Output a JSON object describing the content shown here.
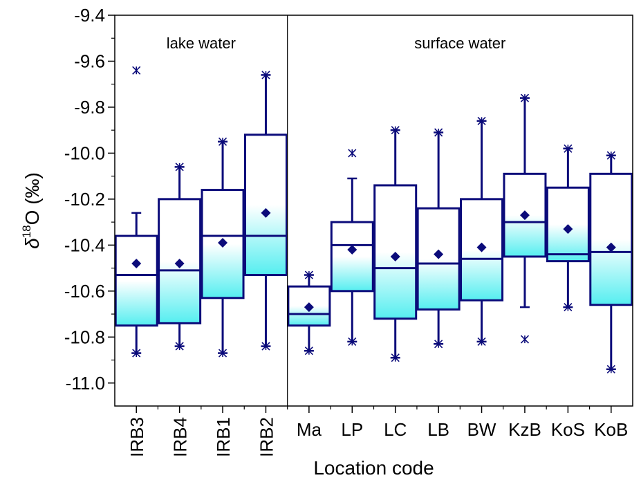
{
  "chart_data": {
    "type": "box",
    "xlabel": "Location code",
    "ylabel": {
      "symbol": "δ",
      "superscript": "18",
      "main": "O (‰)"
    },
    "ylim": [
      -11.1,
      -9.4
    ],
    "yticks": [
      -9.4,
      -9.6,
      -9.8,
      -10.0,
      -10.2,
      -10.4,
      -10.6,
      -10.8,
      -11.0
    ],
    "ytick_labels": [
      "-9.4",
      "-9.6",
      "-9.8",
      "-10.0",
      "-10.2",
      "-10.4",
      "-10.6",
      "-10.8",
      "-11.0"
    ],
    "groups": [
      {
        "label": "lake water",
        "categories": [
          "IRB3",
          "IRB4",
          "IRB1",
          "IRB2"
        ]
      },
      {
        "label": "surface water",
        "categories": [
          "Ma",
          "LP",
          "LC",
          "LB",
          "BW",
          "KzB",
          "KoS",
          "KoB"
        ]
      }
    ],
    "categories": [
      "IRB3",
      "IRB4",
      "IRB1",
      "IRB2",
      "Ma",
      "LP",
      "LC",
      "LB",
      "BW",
      "KzB",
      "KoS",
      "KoB"
    ],
    "boxes": [
      {
        "category": "IRB3",
        "whisker_low": -10.87,
        "q1": -10.75,
        "median": -10.53,
        "q3": -10.36,
        "whisker_high": -10.26,
        "mean": -10.48,
        "outliers": [
          -9.64,
          -10.87
        ]
      },
      {
        "category": "IRB4",
        "whisker_low": -10.84,
        "q1": -10.74,
        "median": -10.51,
        "q3": -10.2,
        "whisker_high": -10.06,
        "mean": -10.48,
        "outliers": [
          -10.06,
          -10.84
        ]
      },
      {
        "category": "IRB1",
        "whisker_low": -10.87,
        "q1": -10.63,
        "median": -10.36,
        "q3": -10.16,
        "whisker_high": -9.95,
        "mean": -10.39,
        "outliers": [
          -9.95,
          -10.87
        ]
      },
      {
        "category": "IRB2",
        "whisker_low": -10.84,
        "q1": -10.53,
        "median": -10.36,
        "q3": -9.92,
        "whisker_high": -9.66,
        "mean": -10.26,
        "outliers": [
          -9.66,
          -10.84
        ]
      },
      {
        "category": "Ma",
        "whisker_low": -10.86,
        "q1": -10.75,
        "median": -10.7,
        "q3": -10.58,
        "whisker_high": -10.53,
        "mean": -10.67,
        "outliers": [
          -10.53,
          -10.86
        ]
      },
      {
        "category": "LP",
        "whisker_low": -10.82,
        "q1": -10.6,
        "median": -10.4,
        "q3": -10.3,
        "whisker_high": -10.11,
        "mean": -10.42,
        "outliers": [
          -10.0,
          -10.82
        ]
      },
      {
        "category": "LC",
        "whisker_low": -10.89,
        "q1": -10.72,
        "median": -10.5,
        "q3": -10.14,
        "whisker_high": -9.9,
        "mean": -10.45,
        "outliers": [
          -9.9,
          -10.89
        ]
      },
      {
        "category": "LB",
        "whisker_low": -10.83,
        "q1": -10.68,
        "median": -10.48,
        "q3": -10.24,
        "whisker_high": -9.91,
        "mean": -10.44,
        "outliers": [
          -9.91,
          -10.83
        ]
      },
      {
        "category": "BW",
        "whisker_low": -10.82,
        "q1": -10.64,
        "median": -10.46,
        "q3": -10.2,
        "whisker_high": -9.86,
        "mean": -10.41,
        "outliers": [
          -9.86,
          -10.82
        ]
      },
      {
        "category": "KzB",
        "whisker_low": -10.67,
        "q1": -10.45,
        "median": -10.3,
        "q3": -10.09,
        "whisker_high": -9.76,
        "mean": -10.27,
        "outliers": [
          -9.76,
          -10.81
        ]
      },
      {
        "category": "KoS",
        "whisker_low": -10.67,
        "q1": -10.47,
        "median": -10.44,
        "q3": -10.15,
        "whisker_high": -9.98,
        "mean": -10.33,
        "outliers": [
          -9.98,
          -10.67
        ]
      },
      {
        "category": "KoB",
        "whisker_low": -10.94,
        "q1": -10.66,
        "median": -10.43,
        "q3": -10.09,
        "whisker_high": -10.01,
        "mean": -10.41,
        "outliers": [
          -10.01,
          -10.94
        ]
      }
    ],
    "rotated_tick_categories": [
      "IRB3",
      "IRB4",
      "IRB1",
      "IRB2"
    ],
    "colors": {
      "stroke": "#0b0b7a",
      "fill_top": "#ffffff",
      "fill_bottom": "#55eef0",
      "mean_marker": "#0b0b7a",
      "axis": "#000000"
    },
    "grid": false
  }
}
